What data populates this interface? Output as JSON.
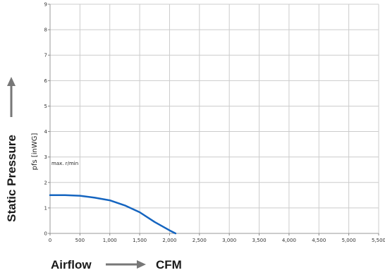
{
  "chart_data": {
    "type": "line",
    "ylabel": "pfs [inWG]",
    "xlim": [
      0,
      5500
    ],
    "ylim": [
      0,
      9
    ],
    "x_ticks": [
      0,
      500,
      1000,
      1500,
      2000,
      2500,
      3000,
      3500,
      4000,
      4500,
      5000,
      5500
    ],
    "x_tick_labels": [
      "0",
      "500",
      "1,000",
      "1,500",
      "2,000",
      "2,500",
      "3,000",
      "3,500",
      "4,000",
      "4,500",
      "5,000",
      "5,500"
    ],
    "y_ticks": [
      0,
      1,
      2,
      3,
      4,
      5,
      6,
      7,
      8,
      9
    ],
    "y_tick_labels": [
      "0",
      "1",
      "2",
      "3",
      "4",
      "5",
      "6",
      "7",
      "8",
      "9"
    ],
    "grid": true,
    "annotation": "max. r/min",
    "series": [
      {
        "color": "#1565c0",
        "x": [
          0,
          250,
          500,
          750,
          1000,
          1250,
          1500,
          1750,
          2000,
          2100
        ],
        "y": [
          1.5,
          1.5,
          1.48,
          1.4,
          1.3,
          1.1,
          0.83,
          0.45,
          0.12,
          0
        ]
      }
    ]
  },
  "side_label": "Static Pressure",
  "bottom_label_left": "Airflow",
  "bottom_label_right": "CFM",
  "colors": {
    "curve": "#1565c0",
    "grid": "#cccccc",
    "arrow": "#777777"
  }
}
